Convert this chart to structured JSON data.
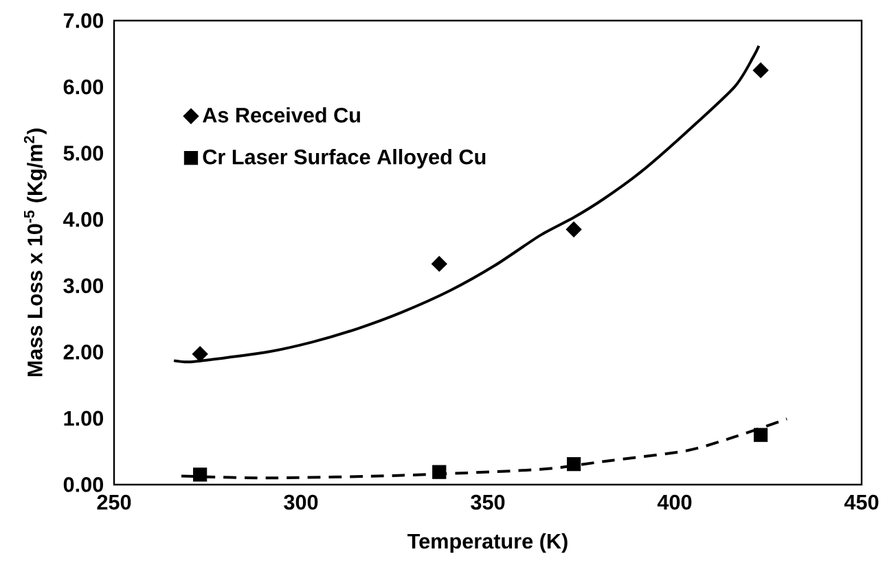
{
  "chart_data": {
    "type": "scatter",
    "xlabel": "Temperature (K)",
    "ylabel": "Mass Loss x 10$^{-5}$ (Kg/m$^{2}$)",
    "x": [
      273,
      337,
      373,
      423
    ],
    "series": [
      {
        "name": "As Received Cu",
        "color": "#000000",
        "marker": "diamond",
        "values": [
          1.97,
          3.33,
          3.85,
          6.25
        ]
      },
      {
        "name": "Cr Laser Surface Alloyed Cu",
        "color": "#000000",
        "marker": "square",
        "values": [
          0.15,
          0.19,
          0.31,
          0.75
        ]
      },
      {
        "type": "line",
        "color": "#000000",
        "marker": "none",
        "line_style": "solid",
        "x": [
          266,
          270,
          278,
          291,
          303,
          315,
          327,
          340,
          352,
          364,
          373,
          381,
          391,
          403,
          416,
          421,
          422.5
        ],
        "values": [
          1.87,
          1.85,
          1.9,
          2.0,
          2.15,
          2.35,
          2.6,
          2.93,
          3.31,
          3.76,
          4.03,
          4.31,
          4.72,
          5.31,
          6.0,
          6.45,
          6.62
        ]
      },
      {
        "type": "line",
        "color": "#000000",
        "marker": "none",
        "line_style": "dashed",
        "x": [
          268,
          291,
          327,
          364,
          381,
          403,
          416,
          430
        ],
        "values": [
          0.13,
          0.1,
          0.14,
          0.23,
          0.35,
          0.51,
          0.72,
          0.99
        ]
      }
    ],
    "xlim": [
      250,
      450
    ],
    "ylim": [
      0,
      7
    ],
    "xticks": [
      250,
      300,
      350,
      400,
      450
    ],
    "yticks": [
      {
        "value": 0,
        "label": "0.00"
      },
      {
        "value": 1,
        "label": "1.00"
      },
      {
        "value": 2,
        "label": "2.00"
      },
      {
        "value": 3,
        "label": "3.00"
      },
      {
        "value": 4,
        "label": "4.00"
      },
      {
        "value": 5,
        "label": "5.00"
      },
      {
        "value": 6,
        "label": "6.00"
      },
      {
        "value": 7,
        "label": "7.00"
      }
    ],
    "legend": "top left"
  }
}
